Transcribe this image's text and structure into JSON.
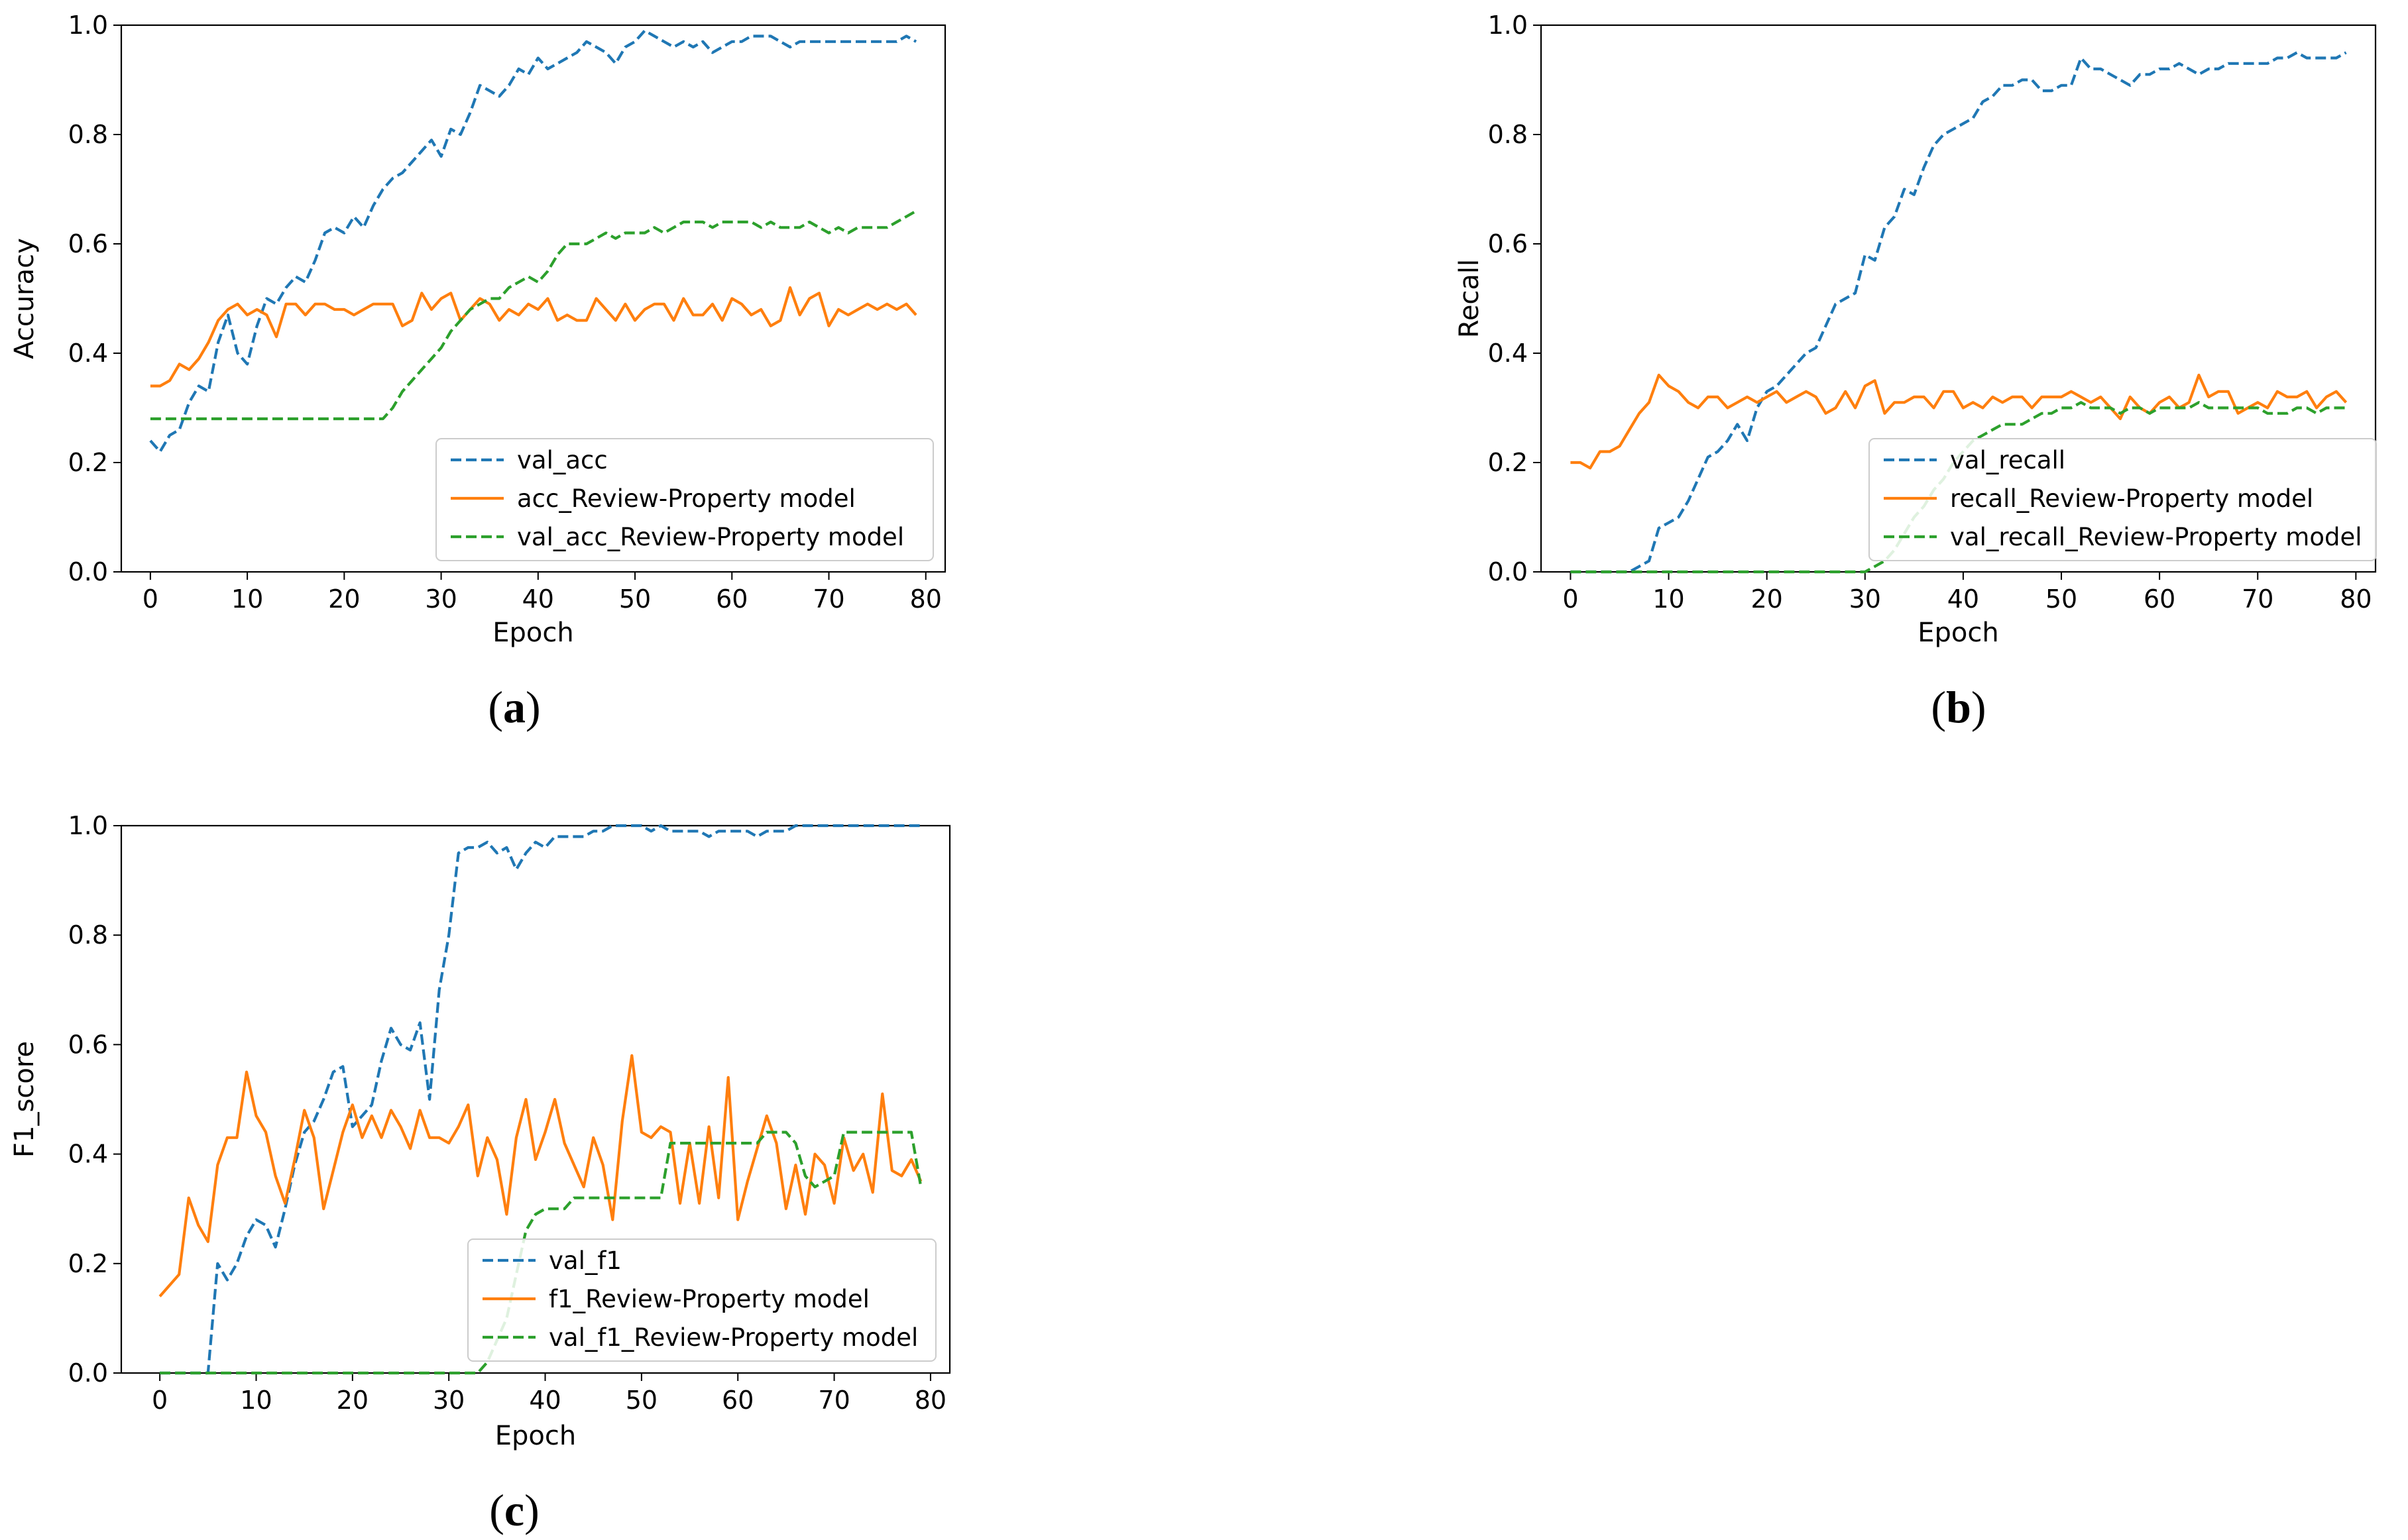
{
  "colors": {
    "val": "#1f77b4",
    "train": "#ff7f0e",
    "valmodel": "#2ca02c"
  },
  "chart_data": [
    {
      "id": "a",
      "type": "line",
      "caption": {
        "open": "(",
        "letter": "a",
        "close": ")"
      },
      "xlabel": "Epoch",
      "ylabel": "Accuracy",
      "xlim": [
        -3,
        82
      ],
      "ylim": [
        0,
        1.0
      ],
      "xticks": [
        "0",
        "10",
        "20",
        "30",
        "40",
        "50",
        "60",
        "70",
        "80"
      ],
      "yticks": [
        "0.0",
        "0.2",
        "0.4",
        "0.6",
        "0.8",
        "1.0"
      ],
      "legend_position": "lower-right",
      "series": [
        {
          "name": "val_acc",
          "style": "dashed",
          "color": "#1f77b4",
          "values": [
            0.24,
            0.22,
            0.25,
            0.26,
            0.31,
            0.34,
            0.33,
            0.42,
            0.47,
            0.4,
            0.38,
            0.45,
            0.5,
            0.49,
            0.52,
            0.54,
            0.53,
            0.57,
            0.62,
            0.63,
            0.62,
            0.65,
            0.63,
            0.67,
            0.7,
            0.72,
            0.73,
            0.75,
            0.77,
            0.79,
            0.76,
            0.81,
            0.8,
            0.84,
            0.89,
            0.88,
            0.87,
            0.89,
            0.92,
            0.91,
            0.94,
            0.92,
            0.93,
            0.94,
            0.95,
            0.97,
            0.96,
            0.95,
            0.93,
            0.96,
            0.97,
            0.99,
            0.98,
            0.97,
            0.96,
            0.97,
            0.96,
            0.97,
            0.95,
            0.96,
            0.97,
            0.97,
            0.98,
            0.98,
            0.98,
            0.97,
            0.96,
            0.97,
            0.97,
            0.97,
            0.97,
            0.97,
            0.97,
            0.97,
            0.97,
            0.97,
            0.97,
            0.97,
            0.98,
            0.97
          ]
        },
        {
          "name": "acc_Review-Property model",
          "style": "solid",
          "color": "#ff7f0e",
          "values": [
            0.34,
            0.34,
            0.35,
            0.38,
            0.37,
            0.39,
            0.42,
            0.46,
            0.48,
            0.49,
            0.47,
            0.48,
            0.47,
            0.43,
            0.49,
            0.49,
            0.47,
            0.49,
            0.49,
            0.48,
            0.48,
            0.47,
            0.48,
            0.49,
            0.49,
            0.49,
            0.45,
            0.46,
            0.51,
            0.48,
            0.5,
            0.51,
            0.46,
            0.48,
            0.5,
            0.49,
            0.46,
            0.48,
            0.47,
            0.49,
            0.48,
            0.5,
            0.46,
            0.47,
            0.46,
            0.46,
            0.5,
            0.48,
            0.46,
            0.49,
            0.46,
            0.48,
            0.49,
            0.49,
            0.46,
            0.5,
            0.47,
            0.47,
            0.49,
            0.46,
            0.5,
            0.49,
            0.47,
            0.48,
            0.45,
            0.46,
            0.52,
            0.47,
            0.5,
            0.51,
            0.45,
            0.48,
            0.47,
            0.48,
            0.49,
            0.48,
            0.49,
            0.48,
            0.49,
            0.47
          ]
        },
        {
          "name": "val_acc_Review-Property model",
          "style": "dashed",
          "color": "#2ca02c",
          "values": [
            0.28,
            0.28,
            0.28,
            0.28,
            0.28,
            0.28,
            0.28,
            0.28,
            0.28,
            0.28,
            0.28,
            0.28,
            0.28,
            0.28,
            0.28,
            0.28,
            0.28,
            0.28,
            0.28,
            0.28,
            0.28,
            0.28,
            0.28,
            0.28,
            0.28,
            0.3,
            0.33,
            0.35,
            0.37,
            0.39,
            0.41,
            0.44,
            0.46,
            0.48,
            0.49,
            0.5,
            0.5,
            0.52,
            0.53,
            0.54,
            0.53,
            0.55,
            0.58,
            0.6,
            0.6,
            0.6,
            0.61,
            0.62,
            0.61,
            0.62,
            0.62,
            0.62,
            0.63,
            0.62,
            0.63,
            0.64,
            0.64,
            0.64,
            0.63,
            0.64,
            0.64,
            0.64,
            0.64,
            0.63,
            0.64,
            0.63,
            0.63,
            0.63,
            0.64,
            0.63,
            0.62,
            0.63,
            0.62,
            0.63,
            0.63,
            0.63,
            0.63,
            0.64,
            0.65,
            0.66
          ]
        }
      ]
    },
    {
      "id": "b",
      "type": "line",
      "caption": {
        "open": "(",
        "letter": "b",
        "close": ")"
      },
      "xlabel": "Epoch",
      "ylabel": "Recall",
      "xlim": [
        -3,
        82
      ],
      "ylim": [
        0,
        1.0
      ],
      "xticks": [
        "0",
        "10",
        "20",
        "30",
        "40",
        "50",
        "60",
        "70",
        "80"
      ],
      "yticks": [
        "0.0",
        "0.2",
        "0.4",
        "0.6",
        "0.8",
        "1.0"
      ],
      "legend_position": "lower-right",
      "series": [
        {
          "name": "val_recall",
          "style": "dashed",
          "color": "#1f77b4",
          "values": [
            0,
            0,
            0,
            0,
            0,
            0,
            0,
            0.01,
            0.02,
            0.08,
            0.09,
            0.1,
            0.13,
            0.17,
            0.21,
            0.22,
            0.24,
            0.27,
            0.24,
            0.3,
            0.33,
            0.34,
            0.36,
            0.38,
            0.4,
            0.41,
            0.45,
            0.49,
            0.5,
            0.51,
            0.58,
            0.57,
            0.63,
            0.65,
            0.7,
            0.69,
            0.74,
            0.78,
            0.8,
            0.81,
            0.82,
            0.83,
            0.86,
            0.87,
            0.89,
            0.89,
            0.9,
            0.9,
            0.88,
            0.88,
            0.89,
            0.89,
            0.94,
            0.92,
            0.92,
            0.91,
            0.9,
            0.89,
            0.91,
            0.91,
            0.92,
            0.92,
            0.93,
            0.92,
            0.91,
            0.92,
            0.92,
            0.93,
            0.93,
            0.93,
            0.93,
            0.93,
            0.94,
            0.94,
            0.95,
            0.94,
            0.94,
            0.94,
            0.94,
            0.95
          ]
        },
        {
          "name": "recall_Review-Property model",
          "style": "solid",
          "color": "#ff7f0e",
          "values": [
            0.2,
            0.2,
            0.19,
            0.22,
            0.22,
            0.23,
            0.26,
            0.29,
            0.31,
            0.36,
            0.34,
            0.33,
            0.31,
            0.3,
            0.32,
            0.32,
            0.3,
            0.31,
            0.32,
            0.31,
            0.32,
            0.33,
            0.31,
            0.32,
            0.33,
            0.32,
            0.29,
            0.3,
            0.33,
            0.3,
            0.34,
            0.35,
            0.29,
            0.31,
            0.31,
            0.32,
            0.32,
            0.3,
            0.33,
            0.33,
            0.3,
            0.31,
            0.3,
            0.32,
            0.31,
            0.32,
            0.32,
            0.3,
            0.32,
            0.32,
            0.32,
            0.33,
            0.32,
            0.31,
            0.32,
            0.3,
            0.28,
            0.32,
            0.3,
            0.29,
            0.31,
            0.32,
            0.3,
            0.31,
            0.36,
            0.32,
            0.33,
            0.33,
            0.29,
            0.3,
            0.31,
            0.3,
            0.33,
            0.32,
            0.32,
            0.33,
            0.3,
            0.32,
            0.33,
            0.31
          ]
        },
        {
          "name": "val_recall_Review-Property model",
          "style": "dashed",
          "color": "#2ca02c",
          "values": [
            0,
            0,
            0,
            0,
            0,
            0,
            0,
            0,
            0,
            0,
            0,
            0,
            0,
            0,
            0,
            0,
            0,
            0,
            0,
            0,
            0,
            0,
            0,
            0,
            0,
            0,
            0,
            0,
            0,
            0,
            0,
            0.01,
            0.02,
            0.04,
            0.07,
            0.1,
            0.12,
            0.15,
            0.17,
            0.2,
            0.22,
            0.24,
            0.25,
            0.26,
            0.27,
            0.27,
            0.27,
            0.28,
            0.29,
            0.29,
            0.3,
            0.3,
            0.31,
            0.3,
            0.3,
            0.3,
            0.29,
            0.3,
            0.3,
            0.29,
            0.3,
            0.3,
            0.3,
            0.3,
            0.31,
            0.3,
            0.3,
            0.3,
            0.3,
            0.3,
            0.3,
            0.29,
            0.29,
            0.29,
            0.3,
            0.3,
            0.29,
            0.3,
            0.3,
            0.3
          ]
        }
      ]
    },
    {
      "id": "c",
      "type": "line",
      "caption": {
        "open": "(",
        "letter": "c",
        "close": ")"
      },
      "xlabel": "Epoch",
      "ylabel": "F1_score",
      "xlim": [
        -4,
        82
      ],
      "ylim": [
        0,
        1.0
      ],
      "xticks": [
        "0",
        "10",
        "20",
        "30",
        "40",
        "50",
        "60",
        "70",
        "80"
      ],
      "yticks": [
        "0.0",
        "0.2",
        "0.4",
        "0.6",
        "0.8",
        "1.0"
      ],
      "legend_position": "lower-right",
      "series": [
        {
          "name": "val_f1",
          "style": "dashed",
          "color": "#1f77b4",
          "values": [
            0,
            0,
            0,
            0,
            0,
            0,
            0.2,
            0.17,
            0.2,
            0.25,
            0.28,
            0.27,
            0.23,
            0.3,
            0.38,
            0.44,
            0.46,
            0.5,
            0.55,
            0.56,
            0.45,
            0.47,
            0.49,
            0.57,
            0.63,
            0.6,
            0.59,
            0.64,
            0.5,
            0.7,
            0.8,
            0.95,
            0.96,
            0.96,
            0.97,
            0.95,
            0.96,
            0.92,
            0.95,
            0.97,
            0.96,
            0.98,
            0.98,
            0.98,
            0.98,
            0.99,
            0.99,
            1.0,
            1.0,
            1.0,
            1.0,
            0.99,
            1.0,
            0.99,
            0.99,
            0.99,
            0.99,
            0.98,
            0.99,
            0.99,
            0.99,
            0.99,
            0.98,
            0.99,
            0.99,
            0.99,
            1.0,
            1.0,
            1.0,
            1.0,
            1.0,
            1.0,
            1.0,
            1.0,
            1.0,
            1.0,
            1.0,
            1.0,
            1.0,
            1.0
          ]
        },
        {
          "name": "f1_Review-Property model",
          "style": "solid",
          "color": "#ff7f0e",
          "values": [
            0.14,
            0.16,
            0.18,
            0.32,
            0.27,
            0.24,
            0.38,
            0.43,
            0.43,
            0.55,
            0.47,
            0.44,
            0.36,
            0.31,
            0.39,
            0.48,
            0.43,
            0.3,
            0.37,
            0.44,
            0.49,
            0.43,
            0.47,
            0.43,
            0.48,
            0.45,
            0.41,
            0.48,
            0.43,
            0.43,
            0.42,
            0.45,
            0.49,
            0.36,
            0.43,
            0.39,
            0.29,
            0.43,
            0.5,
            0.39,
            0.44,
            0.5,
            0.42,
            0.38,
            0.34,
            0.43,
            0.38,
            0.28,
            0.46,
            0.58,
            0.44,
            0.43,
            0.45,
            0.44,
            0.31,
            0.42,
            0.31,
            0.45,
            0.32,
            0.54,
            0.28,
            0.35,
            0.41,
            0.47,
            0.42,
            0.3,
            0.38,
            0.29,
            0.4,
            0.38,
            0.31,
            0.43,
            0.37,
            0.4,
            0.33,
            0.51,
            0.37,
            0.36,
            0.39,
            0.35
          ]
        },
        {
          "name": "val_f1_Review-Property model",
          "style": "dashed",
          "color": "#2ca02c",
          "values": [
            0,
            0,
            0,
            0,
            0,
            0,
            0,
            0,
            0,
            0,
            0,
            0,
            0,
            0,
            0,
            0,
            0,
            0,
            0,
            0,
            0,
            0,
            0,
            0,
            0,
            0,
            0,
            0,
            0,
            0,
            0,
            0,
            0,
            0,
            0.02,
            0.06,
            0.1,
            0.18,
            0.26,
            0.29,
            0.3,
            0.3,
            0.3,
            0.32,
            0.32,
            0.32,
            0.32,
            0.32,
            0.32,
            0.32,
            0.32,
            0.32,
            0.32,
            0.42,
            0.42,
            0.42,
            0.42,
            0.42,
            0.42,
            0.42,
            0.42,
            0.42,
            0.42,
            0.44,
            0.44,
            0.44,
            0.42,
            0.36,
            0.34,
            0.35,
            0.36,
            0.44,
            0.44,
            0.44,
            0.44,
            0.44,
            0.44,
            0.44,
            0.44,
            0.34
          ]
        }
      ]
    }
  ]
}
